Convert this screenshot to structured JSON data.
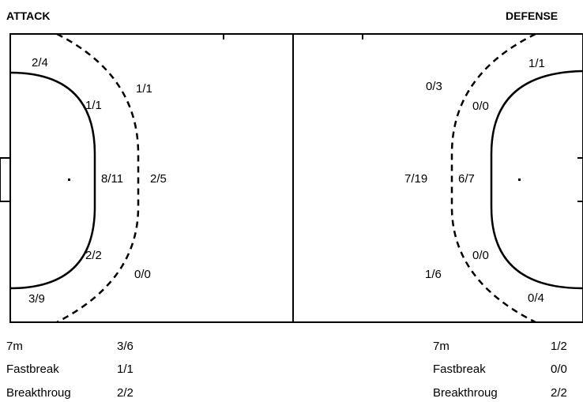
{
  "headers": {
    "attack": "ATTACK",
    "defense": "DEFENSE"
  },
  "attack": {
    "zones": {
      "top_corner": "2/4",
      "upper_inner": "1/1",
      "upper_outer": "1/1",
      "center_inner": "8/11",
      "center_outer": "2/5",
      "lower_inner": "2/2",
      "lower_outer": "0/0",
      "bottom_corner": "3/9"
    },
    "stats": [
      {
        "label": "7m",
        "value": "3/6"
      },
      {
        "label": "Fastbreak",
        "value": "1/1"
      },
      {
        "label": "Breakthroug",
        "value": "2/2"
      }
    ]
  },
  "defense": {
    "zones": {
      "top_corner": "1/1",
      "upper_outer": "0/3",
      "upper_inner": "0/0",
      "center_outer": "7/19",
      "center_inner": "6/7",
      "lower_inner": "0/0",
      "lower_outer": "1/6",
      "bottom_corner": "0/4"
    },
    "stats": [
      {
        "label": "7m",
        "value": "1/2"
      },
      {
        "label": "Fastbreak",
        "value": "0/0"
      },
      {
        "label": "Breakthroug",
        "value": "2/2"
      }
    ]
  }
}
